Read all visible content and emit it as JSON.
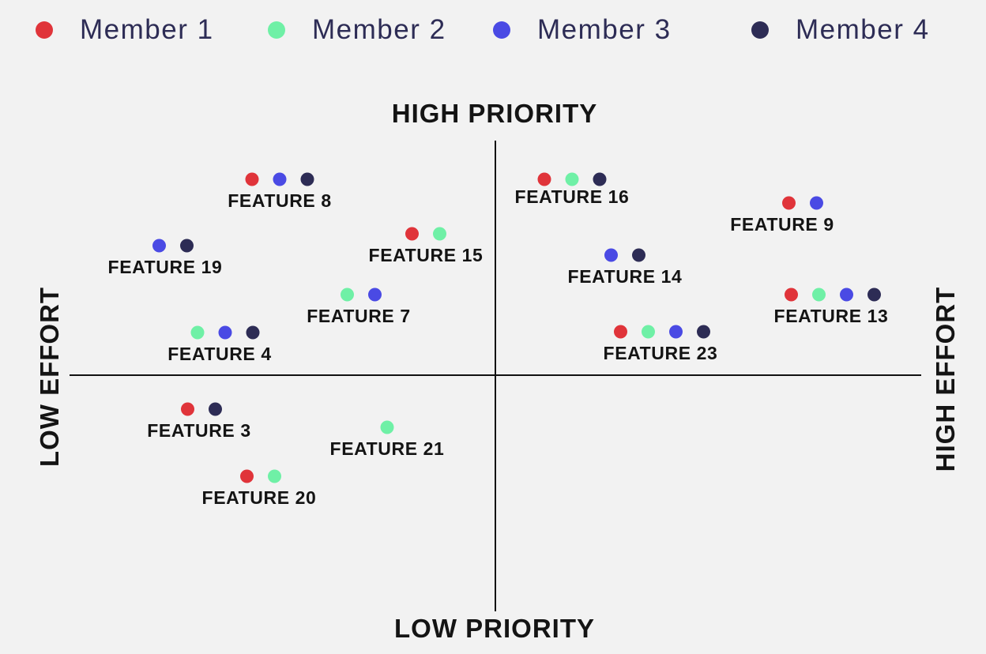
{
  "legend": [
    {
      "id": "m1",
      "label": "Member 1",
      "color": "#e0343a"
    },
    {
      "id": "m2",
      "label": "Member 2",
      "color": "#6ff0a6"
    },
    {
      "id": "m3",
      "label": "Member 3",
      "color": "#4a4ae4"
    },
    {
      "id": "m4",
      "label": "Member 4",
      "color": "#2d2c55"
    }
  ],
  "axes": {
    "top": "HIGH PRIORITY",
    "bottom": "LOW PRIORITY",
    "left": "LOW EFFORT",
    "right": "HIGH EFFORT"
  },
  "features": [
    {
      "id": "f8",
      "label": "FEATURE 8",
      "members": [
        "m1",
        "m3",
        "m4"
      ]
    },
    {
      "id": "f16",
      "label": "FEATURE 16",
      "members": [
        "m1",
        "m2",
        "m4"
      ]
    },
    {
      "id": "f9",
      "label": "FEATURE 9",
      "members": [
        "m1",
        "m3"
      ]
    },
    {
      "id": "f15",
      "label": "FEATURE 15",
      "members": [
        "m1",
        "m2"
      ]
    },
    {
      "id": "f19",
      "label": "FEATURE 19",
      "members": [
        "m3",
        "m4"
      ]
    },
    {
      "id": "f14",
      "label": "FEATURE 14",
      "members": [
        "m3",
        "m4"
      ]
    },
    {
      "id": "f7",
      "label": "FEATURE 7",
      "members": [
        "m2",
        "m3"
      ]
    },
    {
      "id": "f13",
      "label": "FEATURE 13",
      "members": [
        "m1",
        "m2",
        "m3",
        "m4"
      ]
    },
    {
      "id": "f4",
      "label": "FEATURE 4",
      "members": [
        "m2",
        "m3",
        "m4"
      ]
    },
    {
      "id": "f23",
      "label": "FEATURE 23",
      "members": [
        "m1",
        "m2",
        "m3",
        "m4"
      ]
    },
    {
      "id": "f3",
      "label": "FEATURE 3",
      "members": [
        "m1",
        "m4"
      ]
    },
    {
      "id": "f21",
      "label": "FEATURE 21",
      "members": [
        "m2"
      ]
    },
    {
      "id": "f20",
      "label": "FEATURE 20",
      "members": [
        "m1",
        "m2"
      ]
    }
  ]
}
